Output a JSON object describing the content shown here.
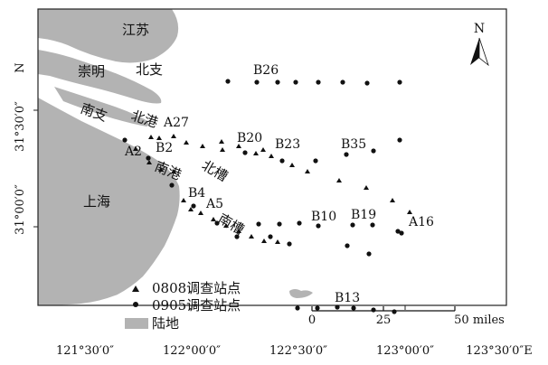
{
  "map": {
    "north_label": "N",
    "x_ticks": [
      "121°30′0″",
      "122°00′0″",
      "122°30′0″",
      "123°00′0″",
      "123°30′0″E"
    ],
    "y_ticks": [
      "31°30′0″",
      "31°00′0″"
    ],
    "y_axis_letter": "N",
    "places": {
      "jiangsu": "江苏",
      "chongming": "崇明",
      "beizhi": "北支",
      "nanzhi": "南支",
      "beigang": "北港",
      "nangang": "南港",
      "beicao": "北槽",
      "nancao": "南槽",
      "shanghai": "上海"
    },
    "station_labels": [
      "B26",
      "A27",
      "B20",
      "B23",
      "B35",
      "A2",
      "B2",
      "B4",
      "A5",
      "B10",
      "B19",
      "A16",
      "B13"
    ],
    "legend": {
      "triangle": "0808调查站点",
      "dot": "0905调查站点",
      "land": "陆地"
    },
    "scale_bar": {
      "labels": [
        "0",
        "25",
        "50 miles"
      ]
    },
    "colors": {
      "land": "#b3b3b3",
      "station": "#111111",
      "frame": "#222222"
    }
  }
}
